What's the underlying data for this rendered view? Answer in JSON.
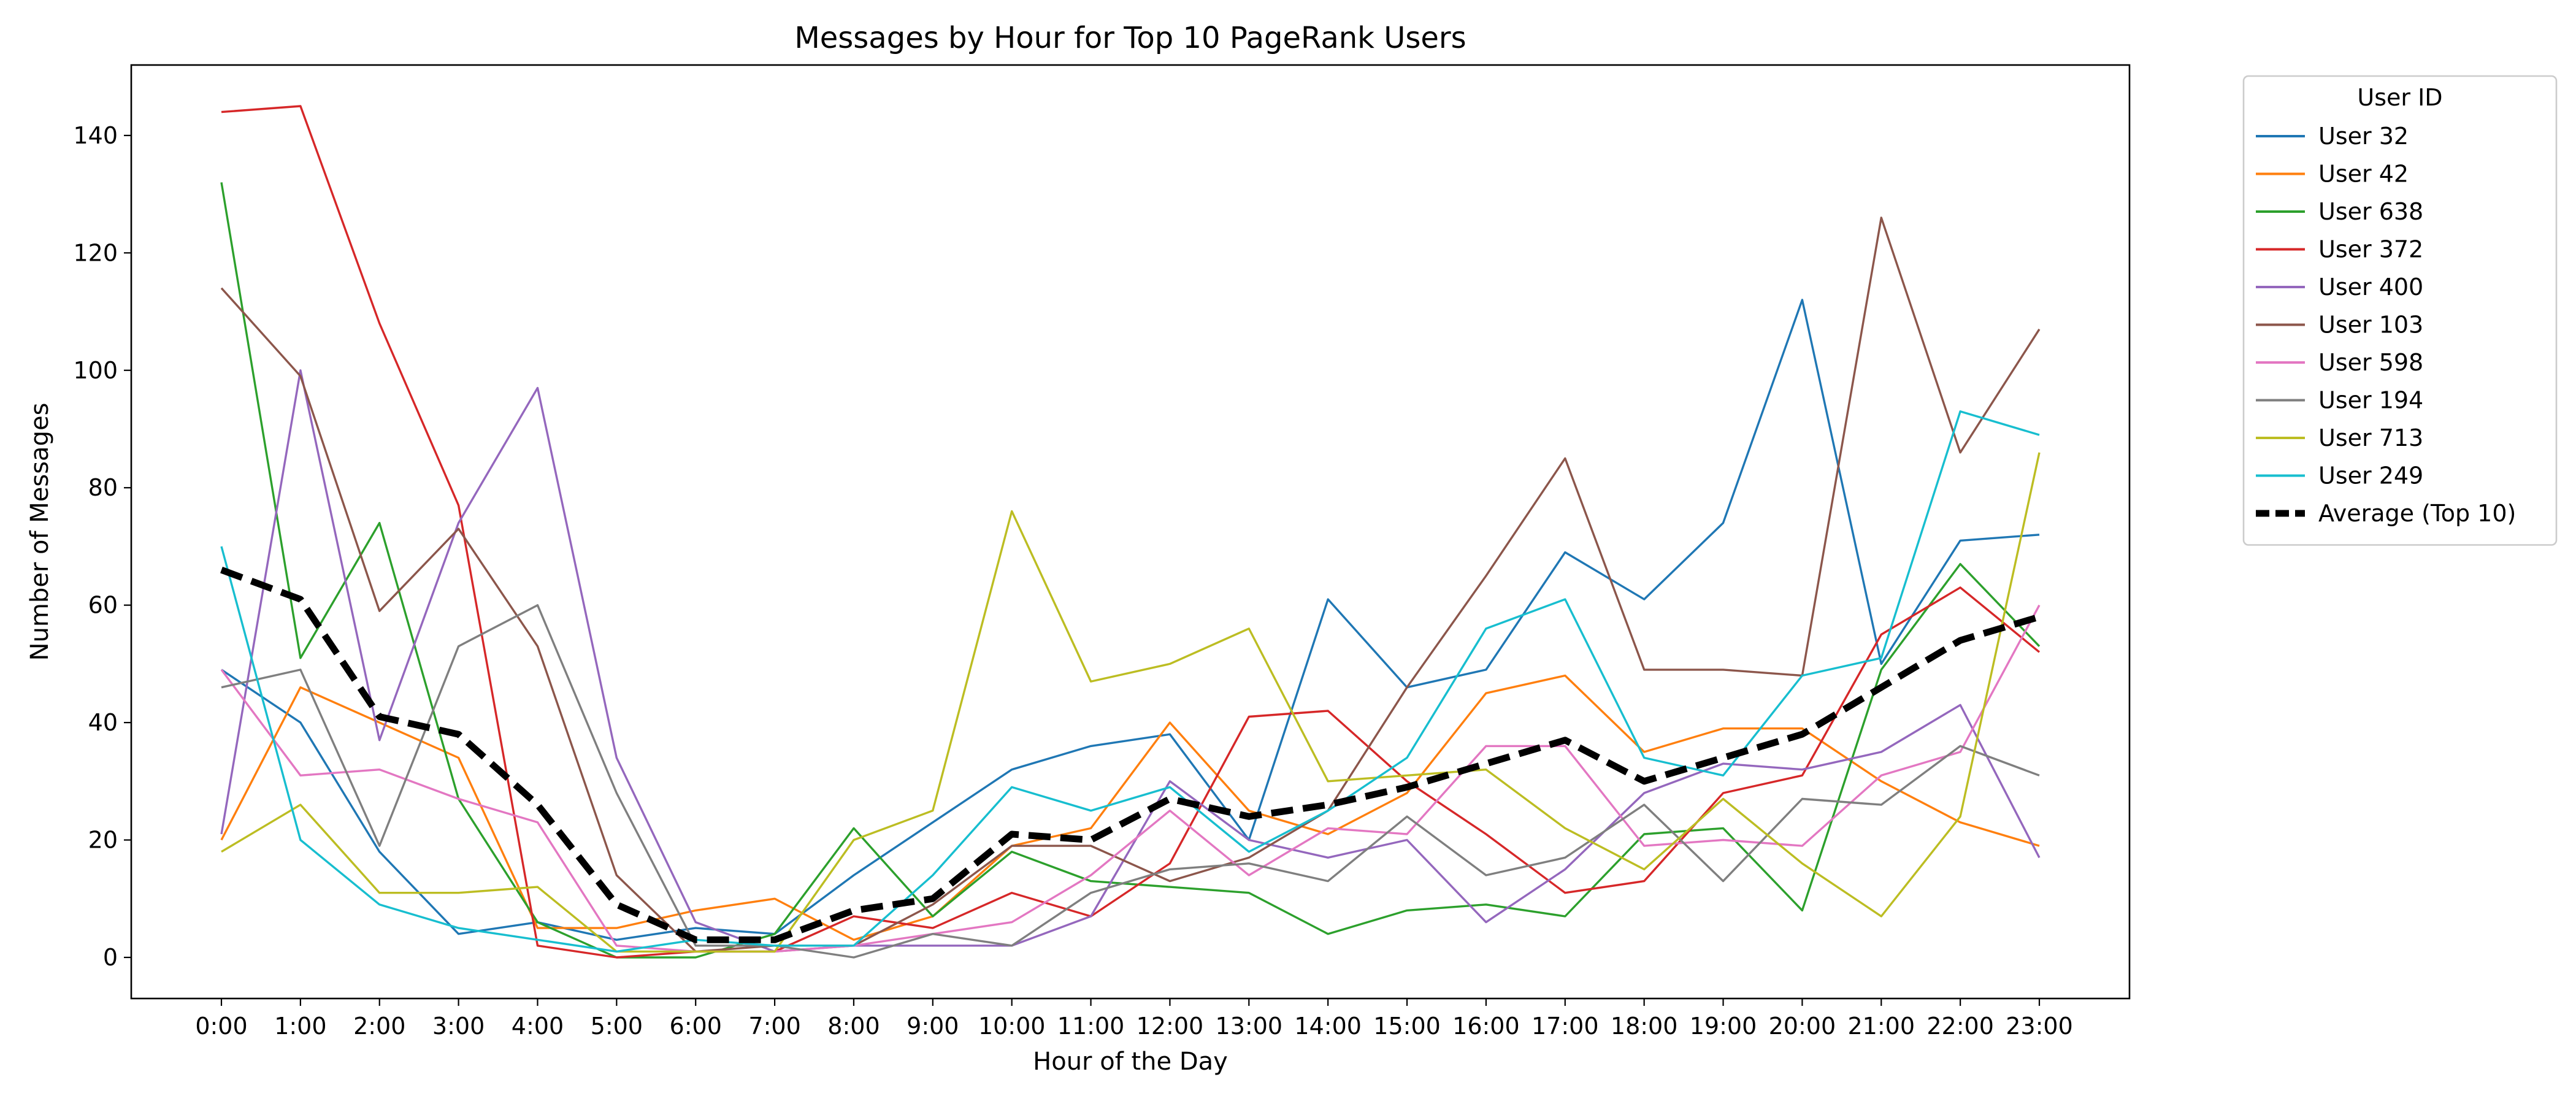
{
  "chart_data": {
    "type": "line",
    "title": "Messages by Hour for Top 10 PageRank Users",
    "xlabel": "Hour of the Day",
    "ylabel": "Number of Messages",
    "ylim": [
      -7,
      152
    ],
    "yticks": [
      0,
      20,
      40,
      60,
      80,
      100,
      120,
      140
    ],
    "grid": false,
    "legend_title": "User ID",
    "legend_position": "outside-right",
    "categories": [
      "0:00",
      "1:00",
      "2:00",
      "3:00",
      "4:00",
      "5:00",
      "6:00",
      "7:00",
      "8:00",
      "9:00",
      "10:00",
      "11:00",
      "12:00",
      "13:00",
      "14:00",
      "15:00",
      "16:00",
      "17:00",
      "18:00",
      "19:00",
      "20:00",
      "21:00",
      "22:00",
      "23:00"
    ],
    "series": [
      {
        "name": "User 32",
        "color": "#1f77b4",
        "values": [
          49,
          40,
          18,
          4,
          6,
          3,
          5,
          4,
          14,
          23,
          32,
          36,
          38,
          20,
          61,
          46,
          49,
          69,
          61,
          74,
          112,
          50,
          71,
          72
        ]
      },
      {
        "name": "User 42",
        "color": "#ff7f0e",
        "values": [
          20,
          46,
          40,
          34,
          5,
          5,
          8,
          10,
          3,
          7,
          19,
          22,
          40,
          25,
          21,
          28,
          45,
          48,
          35,
          39,
          39,
          30,
          23,
          19
        ]
      },
      {
        "name": "User 638",
        "color": "#2ca02c",
        "values": [
          132,
          51,
          74,
          27,
          6,
          0,
          0,
          4,
          22,
          7,
          18,
          13,
          12,
          11,
          4,
          8,
          9,
          7,
          21,
          22,
          8,
          49,
          67,
          53
        ]
      },
      {
        "name": "User 372",
        "color": "#d62728",
        "values": [
          144,
          145,
          108,
          77,
          2,
          0,
          1,
          1,
          7,
          5,
          11,
          7,
          16,
          41,
          42,
          30,
          21,
          11,
          13,
          28,
          31,
          55,
          63,
          52
        ]
      },
      {
        "name": "User 400",
        "color": "#9467bd",
        "values": [
          21,
          100,
          37,
          74,
          97,
          34,
          6,
          1,
          2,
          2,
          2,
          7,
          30,
          20,
          17,
          20,
          6,
          15,
          28,
          33,
          32,
          35,
          43,
          17
        ]
      },
      {
        "name": "User 103",
        "color": "#8c564b",
        "values": [
          114,
          99,
          59,
          73,
          53,
          14,
          1,
          2,
          2,
          9,
          19,
          19,
          13,
          17,
          25,
          46,
          65,
          85,
          49,
          49,
          48,
          126,
          86,
          107
        ]
      },
      {
        "name": "User 598",
        "color": "#e377c2",
        "values": [
          49,
          31,
          32,
          27,
          23,
          2,
          1,
          1,
          2,
          4,
          6,
          14,
          25,
          14,
          22,
          21,
          36,
          36,
          19,
          20,
          19,
          31,
          35,
          60
        ]
      },
      {
        "name": "User 194",
        "color": "#7f7f7f",
        "values": [
          46,
          49,
          19,
          53,
          60,
          28,
          2,
          2,
          0,
          4,
          2,
          11,
          15,
          16,
          13,
          24,
          14,
          17,
          26,
          13,
          27,
          26,
          36,
          31
        ]
      },
      {
        "name": "User 713",
        "color": "#bcbd22",
        "values": [
          18,
          26,
          11,
          11,
          12,
          1,
          1,
          1,
          20,
          25,
          76,
          47,
          50,
          56,
          30,
          31,
          32,
          22,
          15,
          27,
          16,
          7,
          24,
          86
        ]
      },
      {
        "name": "User 249",
        "color": "#17becf",
        "values": [
          70,
          20,
          9,
          5,
          3,
          1,
          3,
          2,
          2,
          14,
          29,
          25,
          29,
          18,
          25,
          34,
          56,
          61,
          34,
          31,
          48,
          51,
          93,
          89
        ]
      },
      {
        "name": "Average (Top 10)",
        "color": "#000000",
        "dashed": true,
        "values": [
          66,
          61,
          41,
          38,
          26,
          9,
          3,
          3,
          8,
          10,
          21,
          20,
          27,
          24,
          26,
          29,
          33,
          37,
          30,
          34,
          38,
          46,
          54,
          58
        ]
      }
    ]
  }
}
